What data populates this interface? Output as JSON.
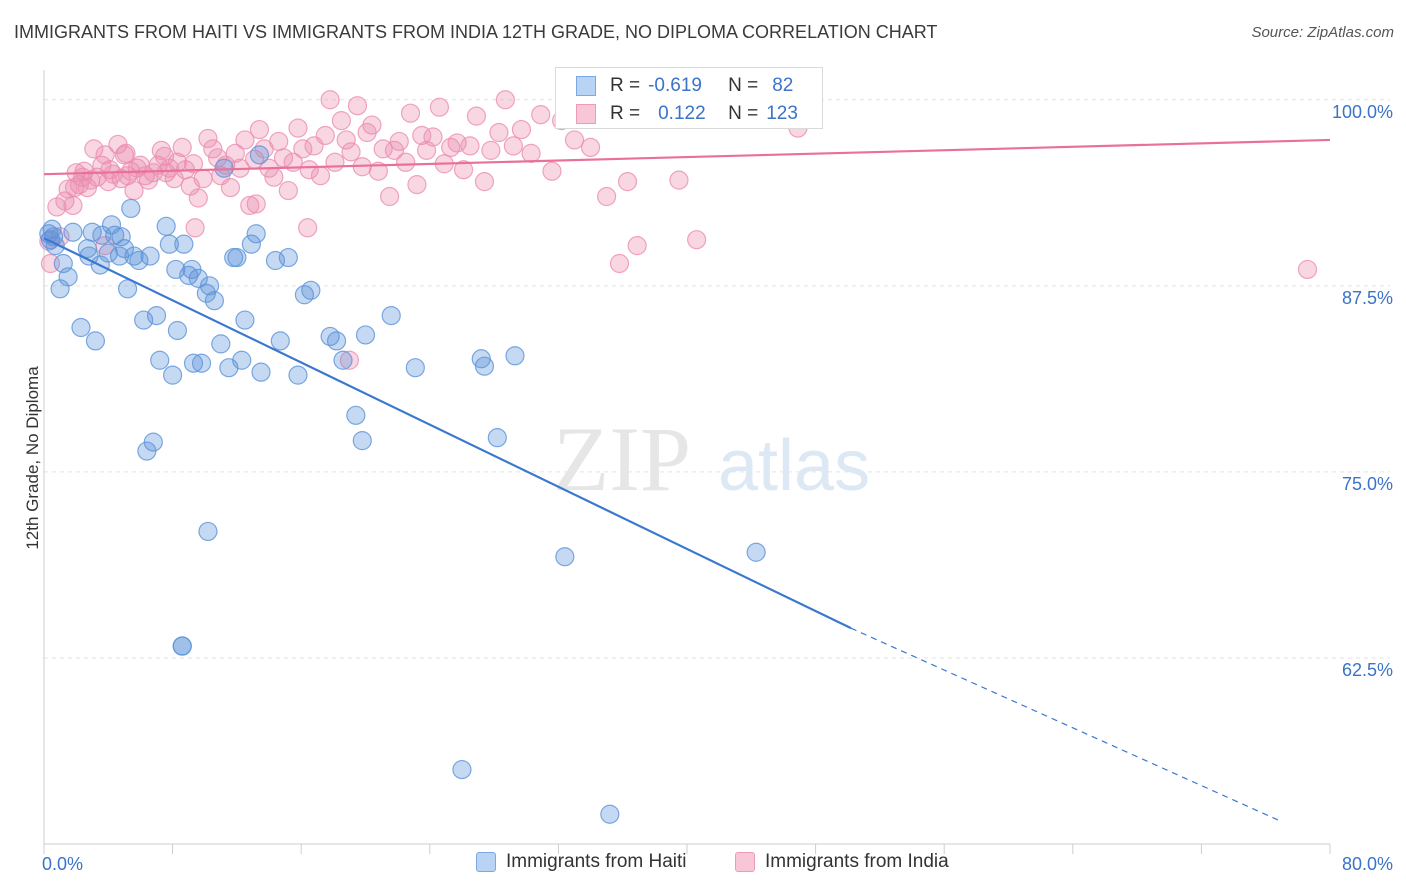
{
  "title": "IMMIGRANTS FROM HAITI VS IMMIGRANTS FROM INDIA 12TH GRADE, NO DIPLOMA CORRELATION CHART",
  "source": "Source: ZipAtlas.com",
  "watermark": {
    "zip": "ZIP",
    "atlas": "atlas"
  },
  "stats": [
    {
      "r_label": "R =",
      "r_value": "-0.619",
      "n_label": "N =",
      "n_value": "82",
      "color": "#a9c8f0"
    },
    {
      "r_label": "R =",
      "r_value": "0.122",
      "n_label": "N =",
      "n_value": "123",
      "color": "#f6b7cb"
    }
  ],
  "legend": [
    {
      "label": "Immigrants from Haiti",
      "color": "#a9c8f0"
    },
    {
      "label": "Immigrants from India",
      "color": "#f6b7cb"
    }
  ],
  "chart_data": {
    "type": "scatter",
    "ylabel": "12th Grade, No Diploma",
    "xlim": [
      0,
      80
    ],
    "ylim": [
      50,
      102
    ],
    "x_tick_labels": [
      "0.0%",
      "80.0%"
    ],
    "y_ticks": [
      {
        "value": 100,
        "label": "100.0%"
      },
      {
        "value": 87.5,
        "label": "87.5%"
      },
      {
        "value": 75,
        "label": "75.0%"
      },
      {
        "value": 62.5,
        "label": "62.5%"
      }
    ],
    "grid": true,
    "legend_position": "bottom",
    "colors": {
      "haiti": "#5b93da",
      "india": "#ec8db0",
      "haiti_line": "#3a78d0",
      "india_line": "#e8709a"
    },
    "series": [
      {
        "name": "Immigrants from Haiti",
        "trend": {
          "x1": 0.0,
          "y1": 90.7,
          "x2": 50.2,
          "y2": 64.5,
          "dash_to_x": 77.0,
          "dash_to_y": 51.5
        },
        "points": [
          [
            0.3,
            91.0
          ],
          [
            0.4,
            90.6
          ],
          [
            0.5,
            91.3
          ],
          [
            0.6,
            90.8
          ],
          [
            0.7,
            90.2
          ],
          [
            1.0,
            87.3
          ],
          [
            1.2,
            89.0
          ],
          [
            1.5,
            88.1
          ],
          [
            1.8,
            91.1
          ],
          [
            2.3,
            84.7
          ],
          [
            2.7,
            90.0
          ],
          [
            2.8,
            89.5
          ],
          [
            3.0,
            91.1
          ],
          [
            3.2,
            83.8
          ],
          [
            3.5,
            88.9
          ],
          [
            3.6,
            90.9
          ],
          [
            4.0,
            89.7
          ],
          [
            4.2,
            91.6
          ],
          [
            4.4,
            90.9
          ],
          [
            4.7,
            89.5
          ],
          [
            4.8,
            90.8
          ],
          [
            5.0,
            90.0
          ],
          [
            5.2,
            87.3
          ],
          [
            5.4,
            92.7
          ],
          [
            5.6,
            89.5
          ],
          [
            5.9,
            89.2
          ],
          [
            6.2,
            85.2
          ],
          [
            6.4,
            76.4
          ],
          [
            6.6,
            89.5
          ],
          [
            6.8,
            77.0
          ],
          [
            7.0,
            85.5
          ],
          [
            7.2,
            82.5
          ],
          [
            7.6,
            91.5
          ],
          [
            7.8,
            90.3
          ],
          [
            8.0,
            81.5
          ],
          [
            8.2,
            88.6
          ],
          [
            8.3,
            84.5
          ],
          [
            8.6,
            63.3
          ],
          [
            8.7,
            90.3
          ],
          [
            9.0,
            88.2
          ],
          [
            9.2,
            88.6
          ],
          [
            9.3,
            82.3
          ],
          [
            9.6,
            88.0
          ],
          [
            9.8,
            82.3
          ],
          [
            10.1,
            87.0
          ],
          [
            10.2,
            71.0
          ],
          [
            10.3,
            87.5
          ],
          [
            10.6,
            86.5
          ],
          [
            11.0,
            83.6
          ],
          [
            11.5,
            82.0
          ],
          [
            11.8,
            89.4
          ],
          [
            12.0,
            89.4
          ],
          [
            12.3,
            82.5
          ],
          [
            12.5,
            85.2
          ],
          [
            12.9,
            90.3
          ],
          [
            13.2,
            91.0
          ],
          [
            13.5,
            81.7
          ],
          [
            14.4,
            89.2
          ],
          [
            14.7,
            83.8
          ],
          [
            15.2,
            89.4
          ],
          [
            15.8,
            81.5
          ],
          [
            16.2,
            86.9
          ],
          [
            16.6,
            87.2
          ],
          [
            17.8,
            84.1
          ],
          [
            18.2,
            83.8
          ],
          [
            18.6,
            82.5
          ],
          [
            19.4,
            78.8
          ],
          [
            19.8,
            77.1
          ],
          [
            20.0,
            84.2
          ],
          [
            21.6,
            85.5
          ],
          [
            23.1,
            82.0
          ],
          [
            26.0,
            55.0
          ],
          [
            27.2,
            82.6
          ],
          [
            27.4,
            82.1
          ],
          [
            28.2,
            77.3
          ],
          [
            29.3,
            82.8
          ],
          [
            32.4,
            69.3
          ],
          [
            35.2,
            52.0
          ],
          [
            44.3,
            69.6
          ],
          [
            8.6,
            63.3
          ],
          [
            13.4,
            96.3
          ],
          [
            11.2,
            95.4
          ]
        ]
      },
      {
        "name": "Immigrants from India",
        "trend": {
          "x1": 0.0,
          "y1": 95.0,
          "x2": 80.0,
          "y2": 97.3
        },
        "points": [
          [
            0.3,
            90.5
          ],
          [
            0.4,
            89.0
          ],
          [
            0.8,
            92.8
          ],
          [
            1.0,
            90.8
          ],
          [
            1.3,
            93.2
          ],
          [
            1.5,
            94.0
          ],
          [
            1.8,
            92.9
          ],
          [
            2.0,
            95.1
          ],
          [
            2.2,
            94.3
          ],
          [
            2.5,
            95.2
          ],
          [
            2.7,
            94.1
          ],
          [
            2.9,
            94.6
          ],
          [
            3.1,
            96.7
          ],
          [
            3.3,
            94.8
          ],
          [
            3.6,
            95.6
          ],
          [
            3.8,
            96.3
          ],
          [
            4.0,
            94.5
          ],
          [
            4.1,
            95.3
          ],
          [
            4.3,
            95.0
          ],
          [
            4.6,
            97.0
          ],
          [
            4.8,
            94.7
          ],
          [
            5.0,
            96.3
          ],
          [
            5.2,
            94.9
          ],
          [
            5.4,
            95.2
          ],
          [
            5.6,
            93.9
          ],
          [
            5.8,
            95.4
          ],
          [
            6.0,
            95.6
          ],
          [
            6.3,
            94.9
          ],
          [
            6.5,
            94.6
          ],
          [
            6.8,
            95.1
          ],
          [
            7.1,
            95.6
          ],
          [
            7.3,
            96.6
          ],
          [
            7.5,
            96.2
          ],
          [
            7.8,
            95.4
          ],
          [
            8.1,
            94.7
          ],
          [
            8.3,
            95.8
          ],
          [
            8.6,
            96.8
          ],
          [
            8.8,
            95.3
          ],
          [
            9.1,
            94.2
          ],
          [
            9.3,
            95.7
          ],
          [
            9.6,
            93.4
          ],
          [
            9.9,
            94.7
          ],
          [
            10.2,
            97.4
          ],
          [
            10.5,
            96.7
          ],
          [
            10.8,
            96.1
          ],
          [
            11.0,
            94.9
          ],
          [
            11.3,
            95.6
          ],
          [
            11.6,
            94.1
          ],
          [
            11.9,
            96.4
          ],
          [
            12.2,
            95.4
          ],
          [
            12.5,
            97.3
          ],
          [
            12.8,
            92.9
          ],
          [
            13.1,
            96.0
          ],
          [
            13.4,
            98.0
          ],
          [
            13.7,
            96.7
          ],
          [
            14.0,
            95.4
          ],
          [
            14.3,
            94.8
          ],
          [
            14.6,
            97.2
          ],
          [
            14.9,
            96.1
          ],
          [
            15.2,
            93.9
          ],
          [
            15.5,
            95.8
          ],
          [
            15.8,
            98.1
          ],
          [
            16.1,
            96.7
          ],
          [
            16.5,
            95.3
          ],
          [
            16.8,
            96.9
          ],
          [
            17.2,
            94.9
          ],
          [
            17.5,
            97.6
          ],
          [
            17.8,
            100.0
          ],
          [
            18.1,
            95.8
          ],
          [
            18.5,
            98.6
          ],
          [
            18.8,
            97.3
          ],
          [
            19.1,
            96.5
          ],
          [
            19.5,
            99.6
          ],
          [
            19.8,
            95.5
          ],
          [
            20.1,
            97.8
          ],
          [
            20.4,
            98.3
          ],
          [
            20.8,
            95.2
          ],
          [
            21.1,
            96.7
          ],
          [
            21.5,
            93.5
          ],
          [
            21.8,
            96.6
          ],
          [
            22.1,
            97.2
          ],
          [
            22.5,
            95.8
          ],
          [
            22.8,
            99.1
          ],
          [
            23.2,
            94.3
          ],
          [
            23.5,
            97.6
          ],
          [
            23.8,
            96.6
          ],
          [
            24.2,
            97.5
          ],
          [
            24.6,
            99.5
          ],
          [
            24.9,
            95.7
          ],
          [
            25.3,
            96.8
          ],
          [
            25.7,
            97.1
          ],
          [
            26.1,
            95.3
          ],
          [
            26.5,
            96.9
          ],
          [
            26.9,
            98.9
          ],
          [
            27.4,
            94.5
          ],
          [
            27.8,
            96.6
          ],
          [
            28.3,
            97.8
          ],
          [
            28.7,
            100.0
          ],
          [
            29.2,
            96.9
          ],
          [
            29.7,
            98.0
          ],
          [
            30.3,
            96.4
          ],
          [
            30.9,
            99.0
          ],
          [
            31.6,
            95.2
          ],
          [
            32.2,
            98.6
          ],
          [
            33.0,
            97.3
          ],
          [
            34.0,
            96.8
          ],
          [
            35.0,
            93.5
          ],
          [
            35.8,
            89.0
          ],
          [
            36.3,
            94.5
          ],
          [
            36.9,
            90.2
          ],
          [
            39.5,
            94.6
          ],
          [
            40.6,
            90.6
          ],
          [
            46.9,
            98.1
          ],
          [
            78.6,
            88.6
          ],
          [
            2.4,
            94.8
          ],
          [
            7.6,
            95.1
          ],
          [
            16.4,
            91.4
          ],
          [
            19.0,
            82.5
          ],
          [
            13.2,
            93.0
          ],
          [
            9.4,
            91.4
          ],
          [
            1.9,
            94.1
          ],
          [
            3.8,
            90.2
          ],
          [
            5.1,
            96.4
          ]
        ]
      }
    ]
  }
}
